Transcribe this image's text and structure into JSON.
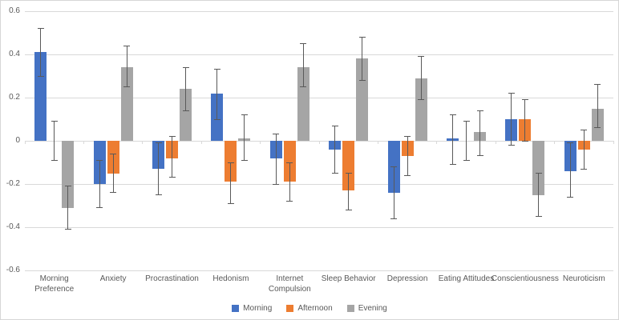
{
  "chart_data": {
    "type": "bar",
    "title": "",
    "categories": [
      "Morning Preference",
      "Anxiety",
      "Procrastination",
      "Hedonism",
      "Internet Compulsion",
      "Sleep Behavior",
      "Depression",
      "Eating Attitudes",
      "Conscientiousness",
      "Neuroticism"
    ],
    "series": [
      {
        "name": "Morning",
        "color": "#4472C4",
        "values": [
          0.41,
          -0.2,
          -0.13,
          0.22,
          -0.08,
          -0.04,
          -0.24,
          0.01,
          0.1,
          -0.14
        ],
        "ci_low": [
          0.3,
          -0.31,
          -0.25,
          0.1,
          -0.2,
          -0.15,
          -0.36,
          -0.11,
          -0.02,
          -0.26
        ],
        "ci_high": [
          0.52,
          -0.09,
          -0.01,
          0.33,
          0.03,
          0.07,
          -0.12,
          0.12,
          0.22,
          -0.01
        ]
      },
      {
        "name": "Afternoon",
        "color": "#ED7D31",
        "values": [
          0.0,
          -0.15,
          -0.08,
          -0.19,
          -0.19,
          -0.23,
          -0.07,
          0.0,
          0.1,
          -0.04
        ],
        "ci_low": [
          -0.09,
          -0.24,
          -0.17,
          -0.29,
          -0.28,
          -0.32,
          -0.16,
          -0.09,
          0.0,
          -0.13
        ],
        "ci_high": [
          0.09,
          -0.06,
          0.02,
          -0.1,
          -0.1,
          -0.15,
          0.02,
          0.09,
          0.19,
          0.05
        ]
      },
      {
        "name": "Evening",
        "color": "#A5A5A5",
        "values": [
          -0.31,
          0.34,
          0.24,
          0.01,
          0.34,
          0.38,
          0.29,
          0.04,
          -0.25,
          0.15
        ],
        "ci_low": [
          -0.41,
          0.25,
          0.14,
          -0.09,
          0.25,
          0.28,
          0.19,
          -0.07,
          -0.35,
          0.06
        ],
        "ci_high": [
          -0.21,
          0.44,
          0.34,
          0.12,
          0.45,
          0.48,
          0.39,
          0.14,
          -0.15,
          0.26
        ]
      }
    ],
    "y_axis": {
      "min": -0.6,
      "max": 0.6,
      "step": 0.2,
      "tick_labels": [
        "0.6",
        "0.4",
        "0.2",
        "0",
        "-0.2",
        "-0.4",
        "-0.6"
      ]
    },
    "x_axis": {
      "label": ""
    },
    "legend": {
      "position": "bottom",
      "entries": [
        "Morning",
        "Afternoon",
        "Evening"
      ]
    },
    "grid": true,
    "error_bars": true,
    "colors": {
      "gridline": "#D9D9D9",
      "axis_text": "#595959",
      "error_bar": "#595959",
      "background": "#FFFFFF"
    }
  }
}
